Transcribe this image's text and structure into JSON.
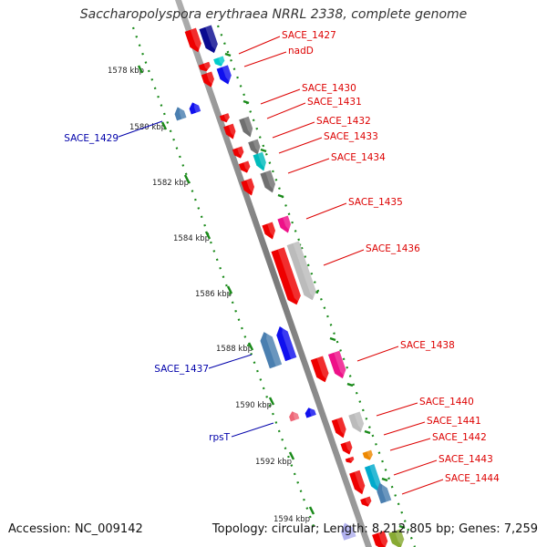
{
  "title": "Saccharopolyspora erythraea NRRL 2338, complete genome",
  "footer": {
    "accession": "Accession: NC_009142",
    "summary": "Topology: circular; Length: 8,212,805 bp; Genes: 7,259"
  },
  "colors": {
    "backbone": "#888888",
    "backbone_light": "#c8c8c8",
    "ruler": "#008000",
    "forward_label": "#dd0000",
    "reverse_label": "#0000aa"
  },
  "ruler_labels": [
    "1578 kbp",
    "1580 kbp",
    "1582 kbp",
    "1584 kbp",
    "1586 kbp",
    "1588 kbp",
    "1590 kbp",
    "1592 kbp",
    "1594 kbp"
  ],
  "forward_genes": [
    "SACE_1427",
    "nadD",
    "SACE_1430",
    "SACE_1431",
    "SACE_1432",
    "SACE_1433",
    "SACE_1434",
    "SACE_1435",
    "SACE_1436",
    "SACE_1438",
    "SACE_1440",
    "SACE_1441",
    "SACE_1442",
    "SACE_1443",
    "SACE_1444"
  ],
  "reverse_genes": [
    "SACE_1429",
    "SACE_1437",
    "rpsT"
  ]
}
